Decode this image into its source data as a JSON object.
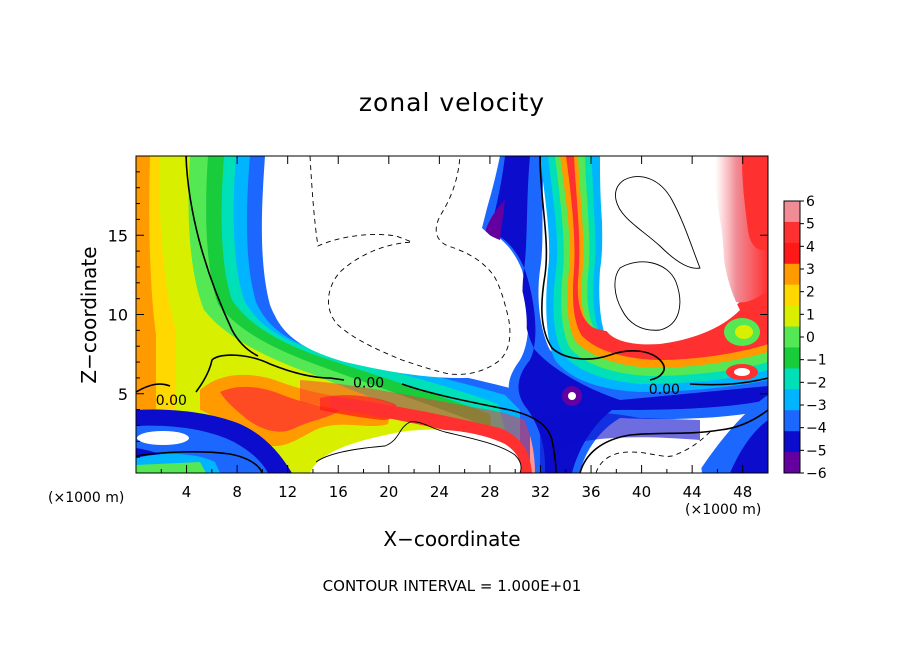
{
  "chart_data": {
    "type": "heatmap",
    "title": "zonal velocity",
    "xlabel": "X−coordinate",
    "ylabel": "Z−coordinate",
    "x_unit_label": "(×1000 m)",
    "footer": "CONTOUR INTERVAL = 1.000E+01",
    "xlim": [
      0,
      50
    ],
    "ylim": [
      0,
      20
    ],
    "x_ticks": [
      4,
      8,
      12,
      16,
      20,
      24,
      28,
      32,
      36,
      40,
      44,
      48
    ],
    "y_ticks": [
      5,
      10,
      15
    ],
    "colorbar": {
      "levels": [
        6,
        5,
        4,
        3,
        2,
        1,
        0,
        -1,
        -2,
        -3,
        -4,
        -5,
        -6
      ],
      "tick_labels": [
        "6",
        "5",
        "4",
        "3",
        "2",
        "1",
        "0",
        "−1",
        "−2",
        "−3",
        "−4",
        "−5",
        "−6"
      ],
      "colors": [
        "#f08c96",
        "#ff3030",
        "#ff1818",
        "#ff9a00",
        "#ffd800",
        "#d8f000",
        "#54e854",
        "#18cc3c",
        "#00e0b8",
        "#00b4ff",
        "#1c68ff",
        "#0c0ccc",
        "#6400a0"
      ]
    },
    "contour_labels": [
      {
        "text": "0.00",
        "x": 2.8,
        "y": 4.6
      },
      {
        "text": "0.00",
        "x": 18.4,
        "y": 5.7
      },
      {
        "text": "0.00",
        "x": 41.8,
        "y": 5.3
      }
    ],
    "contour_interval": "1.000E+01"
  }
}
